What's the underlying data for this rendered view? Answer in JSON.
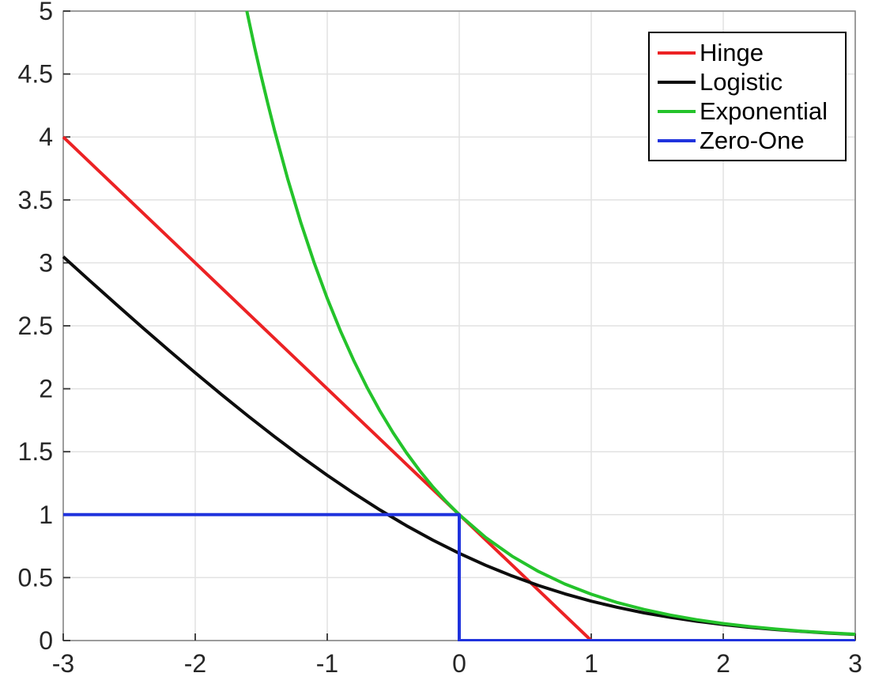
{
  "chart_data": {
    "type": "line",
    "title": "",
    "xlabel": "",
    "ylabel": "",
    "xlim": [
      -3,
      3
    ],
    "ylim": [
      0,
      5
    ],
    "x_ticks": [
      -3,
      -2,
      -1,
      0,
      1,
      2,
      3
    ],
    "y_ticks": [
      0,
      0.5,
      1,
      1.5,
      2,
      2.5,
      3,
      3.5,
      4,
      4.5,
      5
    ],
    "grid": true,
    "legend_position": "top-right",
    "series": [
      {
        "name": "Hinge",
        "color": "#ec2224",
        "points": [
          [
            -3,
            4
          ],
          [
            1,
            0
          ],
          [
            3,
            0
          ]
        ]
      },
      {
        "name": "Logistic",
        "color": "#0d0d0d",
        "points": [
          [
            -3,
            3.049
          ],
          [
            -2.8,
            2.859
          ],
          [
            -2.6,
            2.672
          ],
          [
            -2.4,
            2.487
          ],
          [
            -2.2,
            2.305
          ],
          [
            -2,
            2.127
          ],
          [
            -1.8,
            1.953
          ],
          [
            -1.6,
            1.784
          ],
          [
            -1.4,
            1.62
          ],
          [
            -1.2,
            1.463
          ],
          [
            -1,
            1.313
          ],
          [
            -0.8,
            1.171
          ],
          [
            -0.6,
            1.037
          ],
          [
            -0.4,
            0.913
          ],
          [
            -0.2,
            0.798
          ],
          [
            0,
            0.693
          ],
          [
            0.2,
            0.598
          ],
          [
            0.4,
            0.513
          ],
          [
            0.6,
            0.437
          ],
          [
            0.8,
            0.371
          ],
          [
            1,
            0.313
          ],
          [
            1.2,
            0.263
          ],
          [
            1.4,
            0.22
          ],
          [
            1.6,
            0.184
          ],
          [
            1.8,
            0.153
          ],
          [
            2,
            0.127
          ],
          [
            2.2,
            0.105
          ],
          [
            2.4,
            0.087
          ],
          [
            2.6,
            0.072
          ],
          [
            2.8,
            0.059
          ],
          [
            3,
            0.049
          ]
        ]
      },
      {
        "name": "Exponential",
        "color": "#24c32b",
        "points": [
          [
            -1.609,
            5.0
          ],
          [
            -1.55,
            4.712
          ],
          [
            -1.5,
            4.482
          ],
          [
            -1.45,
            4.263
          ],
          [
            -1.4,
            4.055
          ],
          [
            -1.3,
            3.669
          ],
          [
            -1.2,
            3.32
          ],
          [
            -1.1,
            3.004
          ],
          [
            -1,
            2.718
          ],
          [
            -0.9,
            2.46
          ],
          [
            -0.8,
            2.226
          ],
          [
            -0.7,
            2.014
          ],
          [
            -0.6,
            1.822
          ],
          [
            -0.5,
            1.649
          ],
          [
            -0.4,
            1.492
          ],
          [
            -0.3,
            1.35
          ],
          [
            -0.2,
            1.221
          ],
          [
            -0.1,
            1.105
          ],
          [
            0,
            1
          ],
          [
            0.2,
            0.819
          ],
          [
            0.4,
            0.67
          ],
          [
            0.6,
            0.549
          ],
          [
            0.8,
            0.449
          ],
          [
            1,
            0.368
          ],
          [
            1.2,
            0.301
          ],
          [
            1.4,
            0.247
          ],
          [
            1.6,
            0.202
          ],
          [
            1.8,
            0.165
          ],
          [
            2,
            0.135
          ],
          [
            2.2,
            0.111
          ],
          [
            2.4,
            0.091
          ],
          [
            2.6,
            0.074
          ],
          [
            2.8,
            0.061
          ],
          [
            3,
            0.05
          ]
        ]
      },
      {
        "name": "Zero-One",
        "color": "#2033dd",
        "points": [
          [
            -3,
            1
          ],
          [
            0,
            1
          ],
          [
            0,
            0
          ],
          [
            3,
            0
          ]
        ]
      }
    ]
  }
}
